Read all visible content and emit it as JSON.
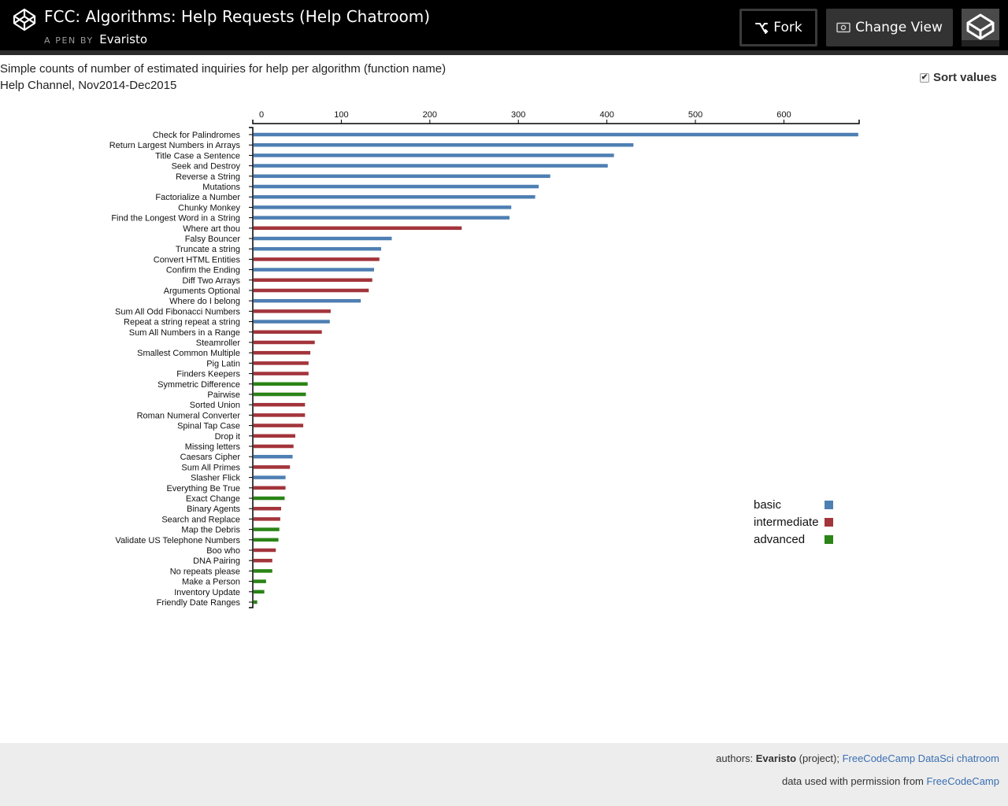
{
  "header": {
    "logo_icon": "codepen-logo-icon",
    "title": "FCC: Algorithms: Help Requests (Help Chatroom)",
    "by_label": "A PEN BY",
    "author": "Evaristo",
    "fork_label": "Fork",
    "fork_icon": "fork-icon",
    "change_view_label": "Change View",
    "change_view_icon": "eye-icon"
  },
  "description": {
    "line1": "Simple counts of number of estimated inquiries for help per algorithm (function name)",
    "line2": "Help Channel, Nov2014-Dec2015"
  },
  "sort": {
    "label": "Sort values",
    "checked": true
  },
  "legend": {
    "items": [
      {
        "label": "basic",
        "color": "#4e7fb3"
      },
      {
        "label": "intermediate",
        "color": "#a3343b"
      },
      {
        "label": "advanced",
        "color": "#2a8416"
      }
    ]
  },
  "chart_data": {
    "type": "bar",
    "orientation": "horizontal",
    "xlim": [
      0,
      685
    ],
    "xticks": [
      0,
      100,
      200,
      300,
      400,
      500,
      600
    ],
    "legend_position": "right",
    "grid": false,
    "colors": {
      "basic": "#4e7fb3",
      "intermediate": "#a3343b",
      "advanced": "#2a8416"
    },
    "bars": [
      {
        "name": "Check for Palindromes",
        "value": 684,
        "level": "basic"
      },
      {
        "name": "Return Largest Numbers in Arrays",
        "value": 430,
        "level": "basic"
      },
      {
        "name": "Title Case a Sentence",
        "value": 408,
        "level": "basic"
      },
      {
        "name": "Seek and Destroy",
        "value": 401,
        "level": "basic"
      },
      {
        "name": "Reverse a String",
        "value": 336,
        "level": "basic"
      },
      {
        "name": "Mutations",
        "value": 323,
        "level": "basic"
      },
      {
        "name": "Factorialize a Number",
        "value": 319,
        "level": "basic"
      },
      {
        "name": "Chunky Monkey",
        "value": 292,
        "level": "basic"
      },
      {
        "name": "Find the Longest Word in a String",
        "value": 290,
        "level": "basic"
      },
      {
        "name": "Where art thou",
        "value": 236,
        "level": "intermediate"
      },
      {
        "name": "Falsy Bouncer",
        "value": 157,
        "level": "basic"
      },
      {
        "name": "Truncate a string",
        "value": 145,
        "level": "basic"
      },
      {
        "name": "Convert HTML Entities",
        "value": 143,
        "level": "intermediate"
      },
      {
        "name": "Confirm the Ending",
        "value": 137,
        "level": "basic"
      },
      {
        "name": "Diff Two Arrays",
        "value": 135,
        "level": "intermediate"
      },
      {
        "name": "Arguments Optional",
        "value": 131,
        "level": "intermediate"
      },
      {
        "name": "Where do I belong",
        "value": 122,
        "level": "basic"
      },
      {
        "name": "Sum All Odd Fibonacci Numbers",
        "value": 88,
        "level": "intermediate"
      },
      {
        "name": "Repeat a string repeat a string",
        "value": 87,
        "level": "basic"
      },
      {
        "name": "Sum All Numbers in a Range",
        "value": 78,
        "level": "intermediate"
      },
      {
        "name": "Steamroller",
        "value": 70,
        "level": "intermediate"
      },
      {
        "name": "Smallest Common Multiple",
        "value": 65,
        "level": "intermediate"
      },
      {
        "name": "Pig Latin",
        "value": 63,
        "level": "intermediate"
      },
      {
        "name": "Finders Keepers",
        "value": 63,
        "level": "intermediate"
      },
      {
        "name": "Symmetric Difference",
        "value": 62,
        "level": "advanced"
      },
      {
        "name": "Pairwise",
        "value": 60,
        "level": "advanced"
      },
      {
        "name": "Sorted Union",
        "value": 59,
        "level": "intermediate"
      },
      {
        "name": "Roman Numeral Converter",
        "value": 59,
        "level": "intermediate"
      },
      {
        "name": "Spinal Tap Case",
        "value": 57,
        "level": "intermediate"
      },
      {
        "name": "Drop it",
        "value": 48,
        "level": "intermediate"
      },
      {
        "name": "Missing letters",
        "value": 46,
        "level": "intermediate"
      },
      {
        "name": "Caesars Cipher",
        "value": 45,
        "level": "basic"
      },
      {
        "name": "Sum All Primes",
        "value": 42,
        "level": "intermediate"
      },
      {
        "name": "Slasher Flick",
        "value": 37,
        "level": "basic"
      },
      {
        "name": "Everything Be True",
        "value": 37,
        "level": "intermediate"
      },
      {
        "name": "Exact Change",
        "value": 36,
        "level": "advanced"
      },
      {
        "name": "Binary Agents",
        "value": 32,
        "level": "intermediate"
      },
      {
        "name": "Search and Replace",
        "value": 31,
        "level": "intermediate"
      },
      {
        "name": "Map the Debris",
        "value": 30,
        "level": "advanced"
      },
      {
        "name": "Validate US Telephone Numbers",
        "value": 29,
        "level": "advanced"
      },
      {
        "name": "Boo who",
        "value": 26,
        "level": "intermediate"
      },
      {
        "name": "DNA Pairing",
        "value": 22,
        "level": "intermediate"
      },
      {
        "name": "No repeats please",
        "value": 22,
        "level": "advanced"
      },
      {
        "name": "Make a Person",
        "value": 15,
        "level": "advanced"
      },
      {
        "name": "Inventory Update",
        "value": 13,
        "level": "advanced"
      },
      {
        "name": "Friendly Date Ranges",
        "value": 5,
        "level": "advanced"
      }
    ]
  },
  "footer": {
    "authors_prefix": "authors: ",
    "authors_name": "Evaristo",
    "authors_mid": " (project); ",
    "authors_link": "FreeCodeCamp DataSci chatroom",
    "data_prefix": "data used with permission from ",
    "data_link": "FreeCodeCamp"
  }
}
